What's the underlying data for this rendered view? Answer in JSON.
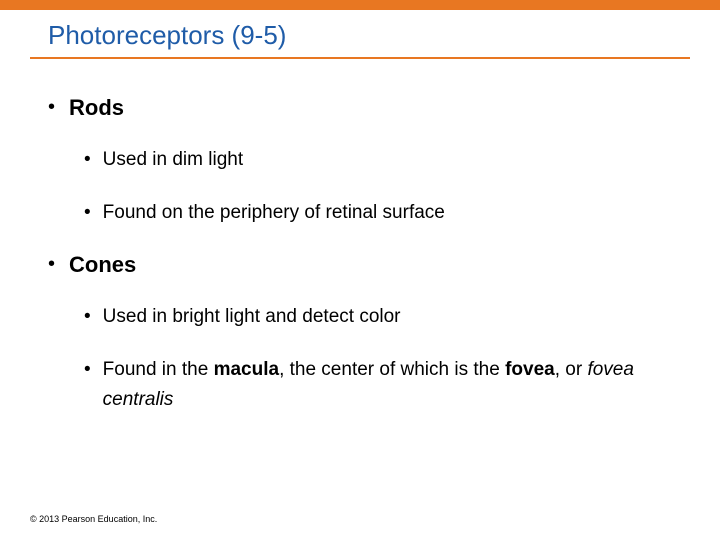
{
  "colors": {
    "accent": "#e87722",
    "title": "#1f5ca8",
    "text": "#000000",
    "background": "#ffffff"
  },
  "title": "Photoreceptors (9-5)",
  "bullets": [
    {
      "label": "Rods",
      "sub": [
        {
          "html": "Used in dim light"
        },
        {
          "html": "Found on the periphery of retinal surface"
        }
      ]
    },
    {
      "label": "Cones",
      "sub": [
        {
          "html": "Used in bright light and detect color"
        },
        {
          "html": "Found in the <b>macula</b>, the center of which is the <b>fovea</b>, or <i>fovea centralis</i>"
        }
      ]
    }
  ],
  "footer": "© 2013 Pearson Education, Inc."
}
